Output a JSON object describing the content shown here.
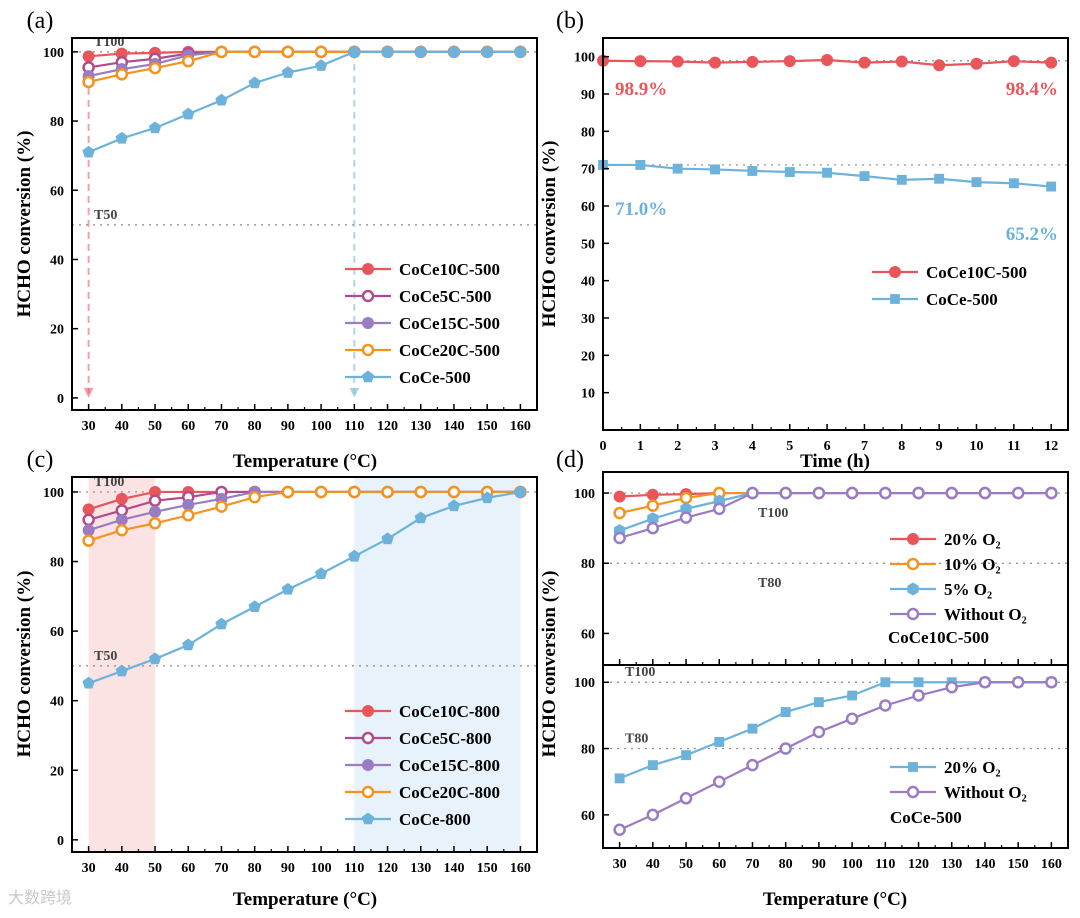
{
  "watermark": "大数跨境",
  "colors": {
    "red": "#e8565c",
    "magenta": "#b14c8c",
    "purple": "#9a7cc4",
    "orange": "#f5931f",
    "blue": "#6cb2db",
    "shade_red": "#fbe3e4",
    "shade_blue": "#e8f2fa"
  },
  "chart_data": [
    {
      "panel": "(a)",
      "type": "line",
      "xlabel": "Temperature (°C)",
      "ylabel": "HCHO conversion (%)",
      "xlim": [
        25,
        165
      ],
      "ylim": [
        -3.5,
        104
      ],
      "xticks": [
        30,
        40,
        50,
        60,
        70,
        80,
        90,
        100,
        110,
        120,
        130,
        140,
        150,
        160
      ],
      "yticks": [
        0,
        20,
        40,
        60,
        80,
        100
      ],
      "reflines": [
        {
          "y": 100,
          "label": "T100"
        },
        {
          "y": 50,
          "label": "T50"
        }
      ],
      "arrows": [
        {
          "x": 30,
          "color": "red"
        },
        {
          "x": 110,
          "color": "blue"
        }
      ],
      "legend": "center-right",
      "x": [
        30,
        40,
        50,
        60,
        70,
        80,
        90,
        100,
        110,
        120,
        130,
        140,
        150,
        160
      ],
      "series": [
        {
          "name": "CoCe10C-500",
          "color": "red",
          "marker": "circle",
          "values": [
            98.7,
            99.5,
            99.7,
            100,
            100,
            100,
            100,
            100,
            100,
            100,
            100,
            100,
            100,
            100
          ]
        },
        {
          "name": "CoCe5C-500",
          "color": "magenta",
          "marker": "circle-open",
          "values": [
            95.5,
            97,
            98,
            99.5,
            100,
            100,
            100,
            100,
            100,
            100,
            100,
            100,
            100,
            100
          ]
        },
        {
          "name": "CoCe15C-500",
          "color": "purple",
          "marker": "circle",
          "values": [
            93,
            95,
            96.5,
            99,
            100,
            100,
            100,
            100,
            100,
            100,
            100,
            100,
            100,
            100
          ]
        },
        {
          "name": "CoCe20C-500",
          "color": "orange",
          "marker": "circle-open",
          "values": [
            91.3,
            93.5,
            95.3,
            97.3,
            100,
            100,
            100,
            100,
            100,
            100,
            100,
            100,
            100,
            100
          ]
        },
        {
          "name": "CoCe-500",
          "color": "blue",
          "marker": "pentagon",
          "values": [
            71,
            75,
            78,
            82,
            86,
            91,
            94,
            96,
            100,
            100,
            100,
            100,
            100,
            100
          ]
        }
      ]
    },
    {
      "panel": "(b)",
      "type": "line",
      "xlabel": "Time (h)",
      "ylabel": "HCHO conversion (%)",
      "xlim": [
        0,
        12.45
      ],
      "ylim": [
        0,
        105
      ],
      "xticks": [
        0,
        1,
        2,
        3,
        4,
        5,
        6,
        7,
        8,
        9,
        10,
        11,
        12
      ],
      "yticks": [
        10,
        20,
        30,
        40,
        50,
        60,
        70,
        80,
        90,
        100
      ],
      "reflines": [
        {
          "y": 98.9,
          "label": ""
        },
        {
          "y": 71.0,
          "label": ""
        }
      ],
      "legend": "center-right",
      "annotations": [
        {
          "text": "98.9%",
          "color": "red",
          "pos": "start-upper"
        },
        {
          "text": "98.4%",
          "color": "red",
          "pos": "end-upper"
        },
        {
          "text": "71.0%",
          "color": "blue",
          "pos": "start-lower"
        },
        {
          "text": "65.2%",
          "color": "blue",
          "pos": "end-lower"
        }
      ],
      "x": [
        0,
        1,
        2,
        3,
        4,
        5,
        6,
        7,
        8,
        9,
        10,
        11,
        12
      ],
      "series": [
        {
          "name": "CoCe10C-500",
          "color": "red",
          "marker": "circle",
          "values": [
            98.9,
            98.8,
            98.7,
            98.4,
            98.6,
            98.8,
            99.1,
            98.4,
            98.7,
            97.7,
            98.1,
            98.8,
            98.4
          ]
        },
        {
          "name": "CoCe-500",
          "color": "blue",
          "marker": "square",
          "values": [
            71.0,
            71.0,
            70.0,
            69.8,
            69.4,
            69.1,
            68.9,
            68.0,
            67.0,
            67.3,
            66.4,
            66.1,
            65.2
          ]
        }
      ]
    },
    {
      "panel": "(c)",
      "type": "line",
      "xlabel": "Temperature (°C)",
      "ylabel": "HCHO conversion (%)",
      "xlim": [
        25,
        165
      ],
      "ylim": [
        -3.5,
        104.3
      ],
      "xticks": [
        30,
        40,
        50,
        60,
        70,
        80,
        90,
        100,
        110,
        120,
        130,
        140,
        150,
        160
      ],
      "yticks": [
        0,
        20,
        40,
        60,
        80,
        100
      ],
      "reflines": [
        {
          "y": 100,
          "label": "T100"
        },
        {
          "y": 50,
          "label": "T50"
        }
      ],
      "shaded": [
        {
          "from": 30,
          "to": 50,
          "color": "shade_red"
        },
        {
          "from": 110,
          "to": 160,
          "color": "shade_blue"
        }
      ],
      "legend": "lower-right",
      "x": [
        30,
        40,
        50,
        60,
        70,
        80,
        90,
        100,
        110,
        120,
        130,
        140,
        150,
        160
      ],
      "series": [
        {
          "name": "CoCe10C-800",
          "color": "red",
          "marker": "circle",
          "values": [
            95,
            98,
            100,
            100,
            100,
            100,
            100,
            100,
            100,
            100,
            100,
            100,
            100,
            100
          ]
        },
        {
          "name": "CoCe5C-800",
          "color": "magenta",
          "marker": "circle-open",
          "values": [
            92,
            94.7,
            97.5,
            98.5,
            100,
            100,
            100,
            100,
            100,
            100,
            100,
            100,
            100,
            100
          ]
        },
        {
          "name": "CoCe15C-800",
          "color": "purple",
          "marker": "circle",
          "values": [
            89,
            92,
            94.3,
            96.3,
            98,
            100,
            100,
            100,
            100,
            100,
            100,
            100,
            100,
            100
          ]
        },
        {
          "name": "CoCe20C-800",
          "color": "orange",
          "marker": "circle-open",
          "values": [
            86,
            89,
            91,
            93.3,
            95.8,
            98.5,
            100,
            100,
            100,
            100,
            100,
            100,
            100,
            100
          ]
        },
        {
          "name": "CoCe-800",
          "color": "blue",
          "marker": "pentagon",
          "values": [
            45,
            48.5,
            52,
            56,
            62,
            67,
            72,
            76.5,
            81.5,
            86.5,
            92.5,
            96,
            98.3,
            100
          ]
        }
      ]
    },
    {
      "panel": "(d)",
      "type": "line",
      "subplot": "top",
      "xlabel": "Temperature (°C)",
      "ylabel": "HCHO conversion (%)",
      "xlim": [
        25,
        165
      ],
      "ylim": [
        51,
        106
      ],
      "xticks": [
        30,
        40,
        50,
        60,
        70,
        80,
        90,
        100,
        110,
        120,
        130,
        140,
        150,
        160
      ],
      "yticks": [
        60,
        80,
        100
      ],
      "reflines": [
        {
          "y": 100,
          "label": "T100"
        },
        {
          "y": 80,
          "label": "T80"
        }
      ],
      "legend": "center-right",
      "caption": "CoCe10C-500",
      "x": [
        30,
        40,
        50,
        60,
        70,
        80,
        90,
        100,
        110,
        120,
        130,
        140,
        150,
        160
      ],
      "series": [
        {
          "name": "20% O₂",
          "color": "red",
          "marker": "circle",
          "values": [
            99,
            99.5,
            99.7,
            100,
            100,
            100,
            100,
            100,
            100,
            100,
            100,
            100,
            100,
            100
          ]
        },
        {
          "name": "10% O₂",
          "color": "orange",
          "marker": "circle-open",
          "values": [
            94.3,
            96.4,
            98.6,
            100,
            100,
            100,
            100,
            100,
            100,
            100,
            100,
            100,
            100,
            100
          ]
        },
        {
          "name": "5% O₂",
          "color": "blue",
          "marker": "hexagon",
          "values": [
            89.3,
            92.7,
            95.5,
            97.7,
            100,
            100,
            100,
            100,
            100,
            100,
            100,
            100,
            100,
            100
          ]
        },
        {
          "name": "Without O₂",
          "color": "purple",
          "marker": "circle-open",
          "values": [
            87.2,
            90,
            93,
            95.5,
            100,
            100,
            100,
            100,
            100,
            100,
            100,
            100,
            100,
            100
          ]
        }
      ]
    },
    {
      "panel": "",
      "type": "line",
      "subplot": "bottom",
      "xlabel": "Temperature (°C)",
      "ylabel": "",
      "xlim": [
        25,
        165
      ],
      "ylim": [
        50,
        105.2
      ],
      "xticks": [
        30,
        40,
        50,
        60,
        70,
        80,
        90,
        100,
        110,
        120,
        130,
        140,
        150,
        160
      ],
      "yticks": [
        60,
        80,
        100
      ],
      "reflines": [
        {
          "y": 100,
          "label": "T100"
        },
        {
          "y": 80,
          "label": "T80"
        }
      ],
      "legend": "lower-right",
      "caption": "CoCe-500",
      "x": [
        30,
        40,
        50,
        60,
        70,
        80,
        90,
        100,
        110,
        120,
        130,
        140,
        150,
        160
      ],
      "series": [
        {
          "name": "20% O₂",
          "color": "blue",
          "marker": "square",
          "values": [
            71,
            75,
            78,
            82,
            86,
            91,
            94,
            96,
            100,
            100,
            100,
            100,
            100,
            100
          ]
        },
        {
          "name": "Without O₂",
          "color": "purple",
          "marker": "circle-open",
          "values": [
            55.5,
            60,
            65,
            70,
            75,
            80,
            85,
            89,
            93,
            96,
            98.5,
            100,
            100,
            100
          ]
        }
      ]
    }
  ]
}
